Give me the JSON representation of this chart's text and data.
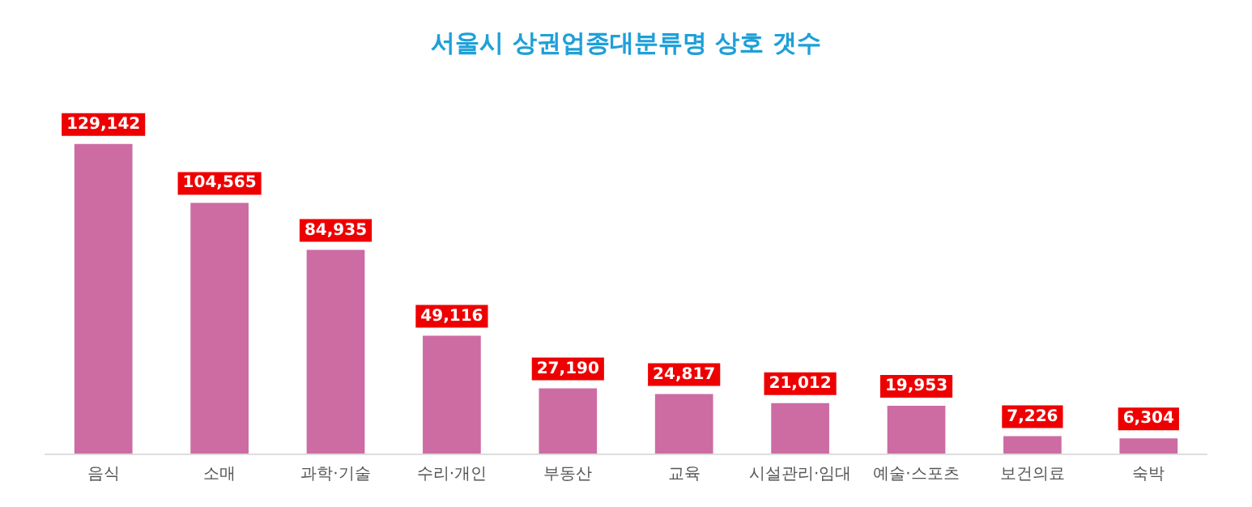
{
  "chart_data": {
    "type": "bar",
    "title": "서울시 상권업종대분류명 상호 갯수",
    "categories": [
      "음식",
      "소매",
      "과학·기술",
      "수리·개인",
      "부동산",
      "교육",
      "시설관리·임대",
      "예술·스포츠",
      "보건의료",
      "숙박"
    ],
    "values": [
      129142,
      104565,
      84935,
      49116,
      27190,
      24817,
      21012,
      19953,
      7226,
      6304
    ],
    "value_labels": [
      "129,142",
      "104,565",
      "84,935",
      "49,116",
      "27,190",
      "24,817",
      "21,012",
      "19,953",
      "7,226",
      "6,304"
    ],
    "color": "#cc6ca3"
  }
}
